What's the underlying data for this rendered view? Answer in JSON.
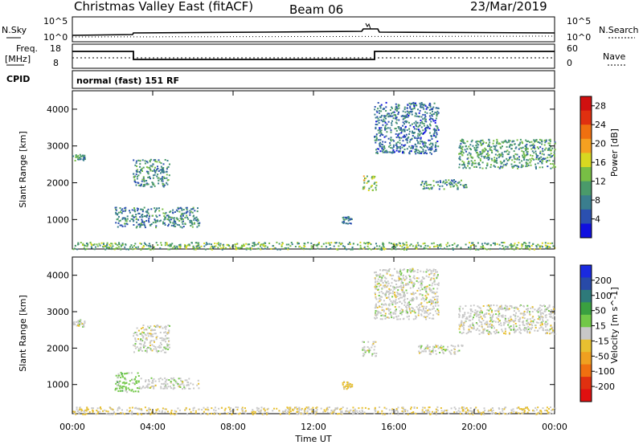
{
  "header": {
    "station": "Christmas Valley East (fitACF)",
    "beam": "Beam 06",
    "date": "23/Mar/2019"
  },
  "status_panels": {
    "nsky_label": "N.Sky",
    "nsky_ticks": [
      "10^5",
      "10^0"
    ],
    "nsearch_label": "N.Search",
    "nsearch_ticks": [
      "10^5",
      "10^0"
    ],
    "freq_label_1": "Freq.",
    "freq_label_2": "[MHz]",
    "freq_ticks": [
      "18",
      "8"
    ],
    "nave_label": "Nave",
    "nave_ticks": [
      "60",
      "0"
    ],
    "cpid_label": "CPID",
    "cpid_text": "normal (fast) 151 RF"
  },
  "colors": {
    "power_scale": [
      "#1010e0",
      "#2b50b0",
      "#3a7e8e",
      "#4a9a6a",
      "#78be45",
      "#d8d820",
      "#f5a020",
      "#f07010",
      "#e03010",
      "#d01010"
    ],
    "velocity_scale": [
      "#1a2ae0",
      "#284aa8",
      "#2e7a7a",
      "#3aa040",
      "#72c848",
      "#c8c8c8",
      "#e8c030",
      "#f0a020",
      "#f07010",
      "#e03010",
      "#e01010"
    ]
  },
  "chart_data": [
    {
      "type": "heatmap",
      "title": "",
      "xlabel": "",
      "ylabel": "Slant Range [km]",
      "x_ticks": [
        "00:00",
        "04:00",
        "08:00",
        "12:00",
        "16:00",
        "20:00",
        "00:00"
      ],
      "y_ticks": [
        "1000",
        "2000",
        "3000",
        "4000"
      ],
      "ylim": [
        200,
        4500
      ],
      "colorbar": {
        "label": "Power [dB]",
        "ticks": [
          "4",
          "8",
          "12",
          "16",
          "20",
          "24",
          "28"
        ],
        "range": [
          0,
          30
        ]
      },
      "regions": [
        {
          "t0": 0.0,
          "t1": 0.6,
          "r0": 2600,
          "r1": 2800,
          "level": 10
        },
        {
          "t0": 2.1,
          "t1": 6.3,
          "r0": 800,
          "r1": 1350,
          "level": 8
        },
        {
          "t0": 3.0,
          "t1": 4.8,
          "r0": 1900,
          "r1": 2650,
          "level": 9
        },
        {
          "t0": 13.4,
          "t1": 13.9,
          "r0": 900,
          "r1": 1100,
          "level": 8
        },
        {
          "t0": 14.4,
          "t1": 15.1,
          "r0": 1800,
          "r1": 2200,
          "level": 14
        },
        {
          "t0": 15.0,
          "t1": 18.2,
          "r0": 2800,
          "r1": 4200,
          "level": 7
        },
        {
          "t0": 17.2,
          "t1": 19.6,
          "r0": 1850,
          "r1": 2100,
          "level": 9
        },
        {
          "t0": 19.2,
          "t1": 24.0,
          "r0": 2400,
          "r1": 3200,
          "level": 10
        },
        {
          "t0": 0.0,
          "t1": 24.0,
          "r0": 200,
          "r1": 400,
          "level": 12
        }
      ]
    },
    {
      "type": "heatmap",
      "title": "",
      "xlabel": "Time UT",
      "ylabel": "Slant Range [km]",
      "x_ticks": [
        "00:00",
        "04:00",
        "08:00",
        "12:00",
        "16:00",
        "20:00",
        "00:00"
      ],
      "y_ticks": [
        "1000",
        "2000",
        "3000",
        "4000"
      ],
      "ylim": [
        200,
        4500
      ],
      "colorbar": {
        "label": "Velocity [m s^-1]",
        "ticks": [
          "200",
          "100",
          "50",
          "15",
          "-15",
          "-50",
          "-100",
          "-200"
        ],
        "range": [
          -250,
          250
        ]
      },
      "regions": [
        {
          "t0": 0.0,
          "t1": 0.6,
          "r0": 2600,
          "r1": 2800,
          "level": 0
        },
        {
          "t0": 2.1,
          "t1": 3.3,
          "r0": 800,
          "r1": 1350,
          "level": 40
        },
        {
          "t0": 3.3,
          "t1": 6.3,
          "r0": 900,
          "r1": 1200,
          "level": 0
        },
        {
          "t0": 3.0,
          "t1": 4.8,
          "r0": 1900,
          "r1": 2650,
          "level": 0
        },
        {
          "t0": 13.4,
          "t1": 13.9,
          "r0": 900,
          "r1": 1100,
          "level": -40
        },
        {
          "t0": 14.4,
          "t1": 15.1,
          "r0": 1800,
          "r1": 2200,
          "level": 0
        },
        {
          "t0": 15.0,
          "t1": 18.2,
          "r0": 2800,
          "r1": 4200,
          "level": 0
        },
        {
          "t0": 17.2,
          "t1": 19.6,
          "r0": 1850,
          "r1": 2100,
          "level": 0
        },
        {
          "t0": 19.2,
          "t1": 24.0,
          "r0": 2400,
          "r1": 3200,
          "level": 0
        },
        {
          "t0": 0.0,
          "t1": 24.0,
          "r0": 200,
          "r1": 400,
          "level": -20
        }
      ]
    }
  ]
}
